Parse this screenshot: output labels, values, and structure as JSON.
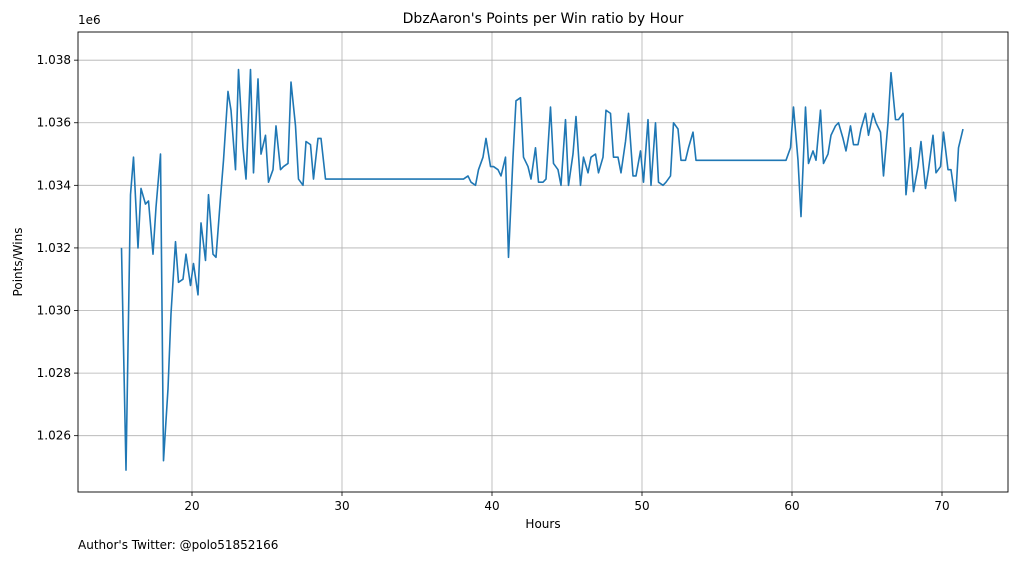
{
  "chart_data": {
    "type": "line",
    "title": "DbzAaron's Points per Win ratio by Hour",
    "xlabel": "Hours",
    "ylabel": "Points/Wins",
    "offset_text": "1e6",
    "xlim": [
      12.4,
      74.4
    ],
    "ylim": [
      1.0242,
      1.0389
    ],
    "x_ticks": [
      20,
      30,
      40,
      50,
      60,
      70
    ],
    "y_ticks": [
      1.026,
      1.028,
      1.03,
      1.032,
      1.034,
      1.036,
      1.038
    ],
    "x_tick_labels": [
      "20",
      "30",
      "40",
      "50",
      "60",
      "70"
    ],
    "y_tick_labels": [
      "1.026",
      "1.028",
      "1.030",
      "1.032",
      "1.034",
      "1.036",
      "1.038"
    ],
    "grid": true,
    "line_color": "#1f77b4",
    "series": [
      {
        "x": [
          15.3,
          15.6,
          15.9,
          16.1,
          16.4,
          16.6,
          16.9,
          17.1,
          17.4,
          17.6,
          17.9,
          18.1,
          18.4,
          18.6,
          18.9,
          19.1,
          19.4,
          19.6,
          19.9,
          20.1,
          20.4,
          20.6,
          20.9,
          21.1,
          21.4,
          21.6,
          21.9,
          22.1,
          22.4,
          22.6,
          22.9,
          23.1,
          23.4,
          23.6,
          23.9,
          24.1,
          24.4,
          24.6,
          24.9,
          25.1,
          25.4,
          25.6,
          25.9,
          26.1,
          26.4,
          26.6,
          26.9,
          27.1,
          27.4,
          27.6,
          27.9,
          28.1,
          28.4,
          28.6,
          28.9,
          38.1,
          38.4,
          38.6,
          38.9,
          39.1,
          39.4,
          39.6,
          39.9,
          40.1,
          40.4,
          40.6,
          40.9,
          41.1,
          41.4,
          41.6,
          41.9,
          42.1,
          42.4,
          42.6,
          42.9,
          43.1,
          43.4,
          43.6,
          43.9,
          44.1,
          44.4,
          44.6,
          44.9,
          45.1,
          45.4,
          45.6,
          45.9,
          46.1,
          46.4,
          46.6,
          46.9,
          47.1,
          47.4,
          47.6,
          47.9,
          48.1,
          48.4,
          48.6,
          48.9,
          49.1,
          49.4,
          49.6,
          49.9,
          50.1,
          50.4,
          50.6,
          50.9,
          51.1,
          51.4,
          51.6,
          51.9,
          52.1,
          52.4,
          52.6,
          52.9,
          53.1,
          53.4,
          53.6,
          53.9,
          59.4,
          59.6,
          59.9,
          60.1,
          60.4,
          60.6,
          60.9,
          61.1,
          61.4,
          61.6,
          61.9,
          62.1,
          62.4,
          62.6,
          62.9,
          63.1,
          63.4,
          63.6,
          63.9,
          64.1,
          64.4,
          64.6,
          64.9,
          65.1,
          65.4,
          65.6,
          65.9,
          66.1,
          66.4,
          66.6,
          66.9,
          67.1,
          67.4,
          67.6,
          67.9,
          68.1,
          68.4,
          68.6,
          68.9,
          69.1,
          69.4,
          69.6,
          69.9,
          70.1,
          70.4,
          70.6,
          70.9,
          71.1,
          71.4
        ],
        "y": [
          1.032,
          1.0249,
          1.0337,
          1.0349,
          1.032,
          1.0339,
          1.0334,
          1.0335,
          1.0318,
          1.0333,
          1.035,
          1.0252,
          1.0275,
          1.0299,
          1.0322,
          1.0309,
          1.031,
          1.0318,
          1.0308,
          1.0315,
          1.0305,
          1.0328,
          1.0316,
          1.0337,
          1.0318,
          1.0317,
          1.0336,
          1.0348,
          1.037,
          1.0364,
          1.0345,
          1.0377,
          1.0352,
          1.0342,
          1.0377,
          1.0344,
          1.0374,
          1.035,
          1.0356,
          1.0341,
          1.0345,
          1.0359,
          1.0345,
          1.0346,
          1.0347,
          1.0373,
          1.0359,
          1.0342,
          1.034,
          1.0354,
          1.0353,
          1.0342,
          1.0355,
          1.0355,
          1.0342,
          1.0342,
          1.0343,
          1.0341,
          1.034,
          1.0345,
          1.0349,
          1.0355,
          1.0346,
          1.0346,
          1.0345,
          1.0343,
          1.0349,
          1.0317,
          1.0349,
          1.0367,
          1.0368,
          1.0349,
          1.0346,
          1.0342,
          1.0352,
          1.0341,
          1.0341,
          1.0342,
          1.0365,
          1.0347,
          1.0345,
          1.034,
          1.0361,
          1.034,
          1.035,
          1.0362,
          1.034,
          1.0349,
          1.0344,
          1.0349,
          1.035,
          1.0344,
          1.0349,
          1.0364,
          1.0363,
          1.0349,
          1.0349,
          1.0344,
          1.0354,
          1.0363,
          1.0343,
          1.0343,
          1.0351,
          1.0341,
          1.0361,
          1.034,
          1.036,
          1.0341,
          1.034,
          1.0341,
          1.0343,
          1.036,
          1.0358,
          1.0348,
          1.0348,
          1.0352,
          1.0357,
          1.0348,
          1.0348,
          1.0348,
          1.0348,
          1.0352,
          1.0365,
          1.0348,
          1.033,
          1.0365,
          1.0347,
          1.0351,
          1.0348,
          1.0364,
          1.0347,
          1.035,
          1.0356,
          1.0359,
          1.036,
          1.0355,
          1.0351,
          1.0359,
          1.0353,
          1.0353,
          1.0358,
          1.0363,
          1.0356,
          1.0363,
          1.036,
          1.0357,
          1.0343,
          1.036,
          1.0376,
          1.0361,
          1.0361,
          1.0363,
          1.0337,
          1.0352,
          1.0338,
          1.0346,
          1.0354,
          1.0339,
          1.0345,
          1.0356,
          1.0344,
          1.0346,
          1.0357,
          1.0345,
          1.0345,
          1.0335,
          1.0352,
          1.0358
        ]
      }
    ]
  },
  "footnote": "Author's Twitter: @polo51852166"
}
